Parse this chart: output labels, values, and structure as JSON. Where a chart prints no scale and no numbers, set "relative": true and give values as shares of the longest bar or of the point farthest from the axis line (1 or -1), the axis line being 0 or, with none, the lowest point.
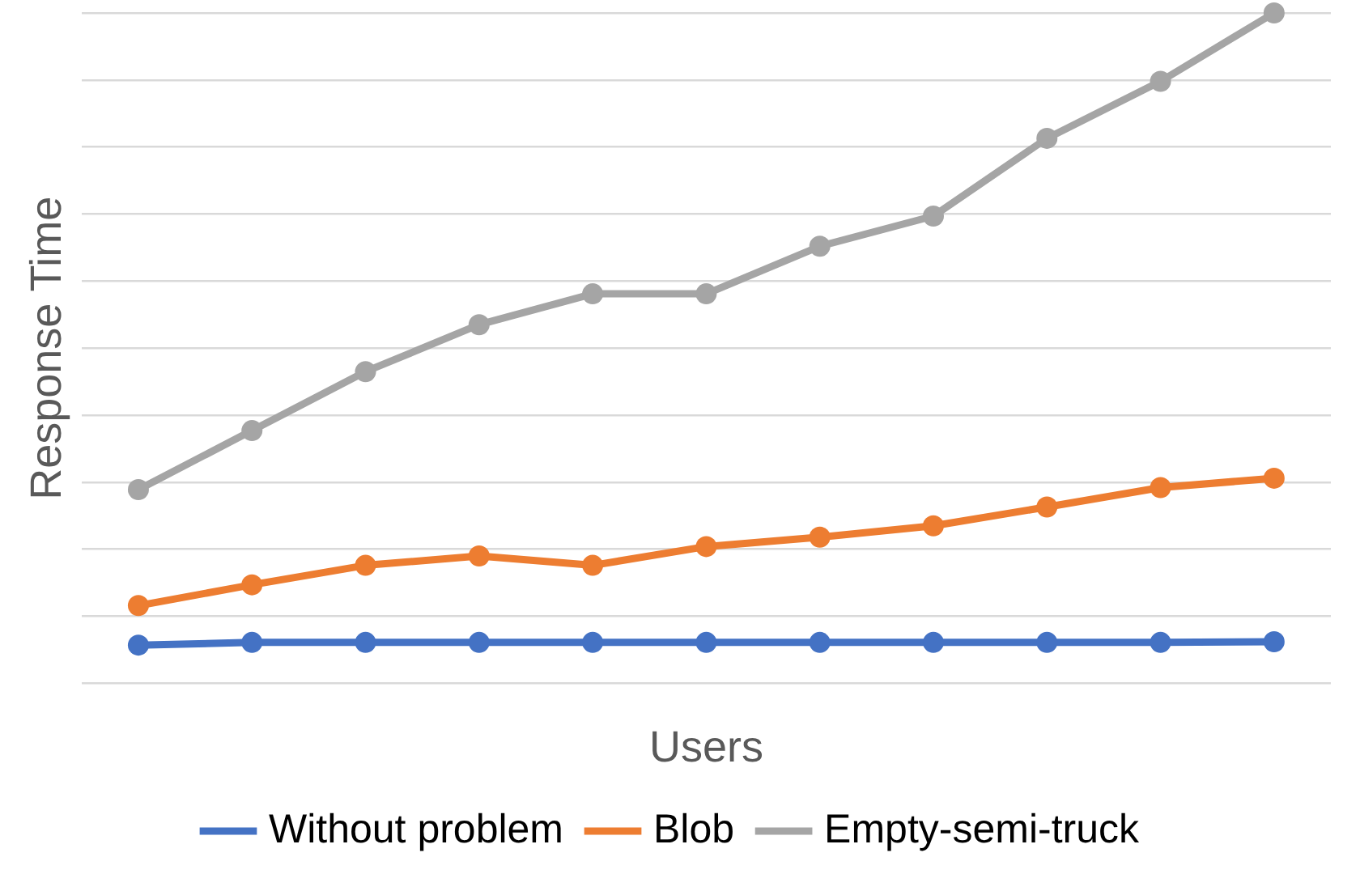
{
  "chart_data": {
    "type": "line",
    "relative": true,
    "xlabel": "Users",
    "ylabel": "Response Time",
    "categories": [
      null,
      null,
      null,
      null,
      null,
      null,
      null,
      null,
      null,
      null,
      null
    ],
    "grid": "y",
    "legend": "bottom",
    "marker": "circle",
    "series": [
      {
        "name": "Without problem",
        "color": "#4472c4",
        "values": [
          0.057,
          0.061,
          0.061,
          0.061,
          0.061,
          0.061,
          0.061,
          0.061,
          0.061,
          0.061,
          0.062
        ]
      },
      {
        "name": "Blob",
        "color": "#ed7d31",
        "values": [
          0.116,
          0.147,
          0.176,
          0.19,
          0.176,
          0.204,
          0.218,
          0.235,
          0.263,
          0.292,
          0.306
        ]
      },
      {
        "name": "Empty-semi-truck",
        "color": "#a5a5a5",
        "values": [
          0.289,
          0.377,
          0.465,
          0.535,
          0.581,
          0.581,
          0.652,
          0.697,
          0.813,
          0.898,
          1
        ]
      }
    ]
  }
}
